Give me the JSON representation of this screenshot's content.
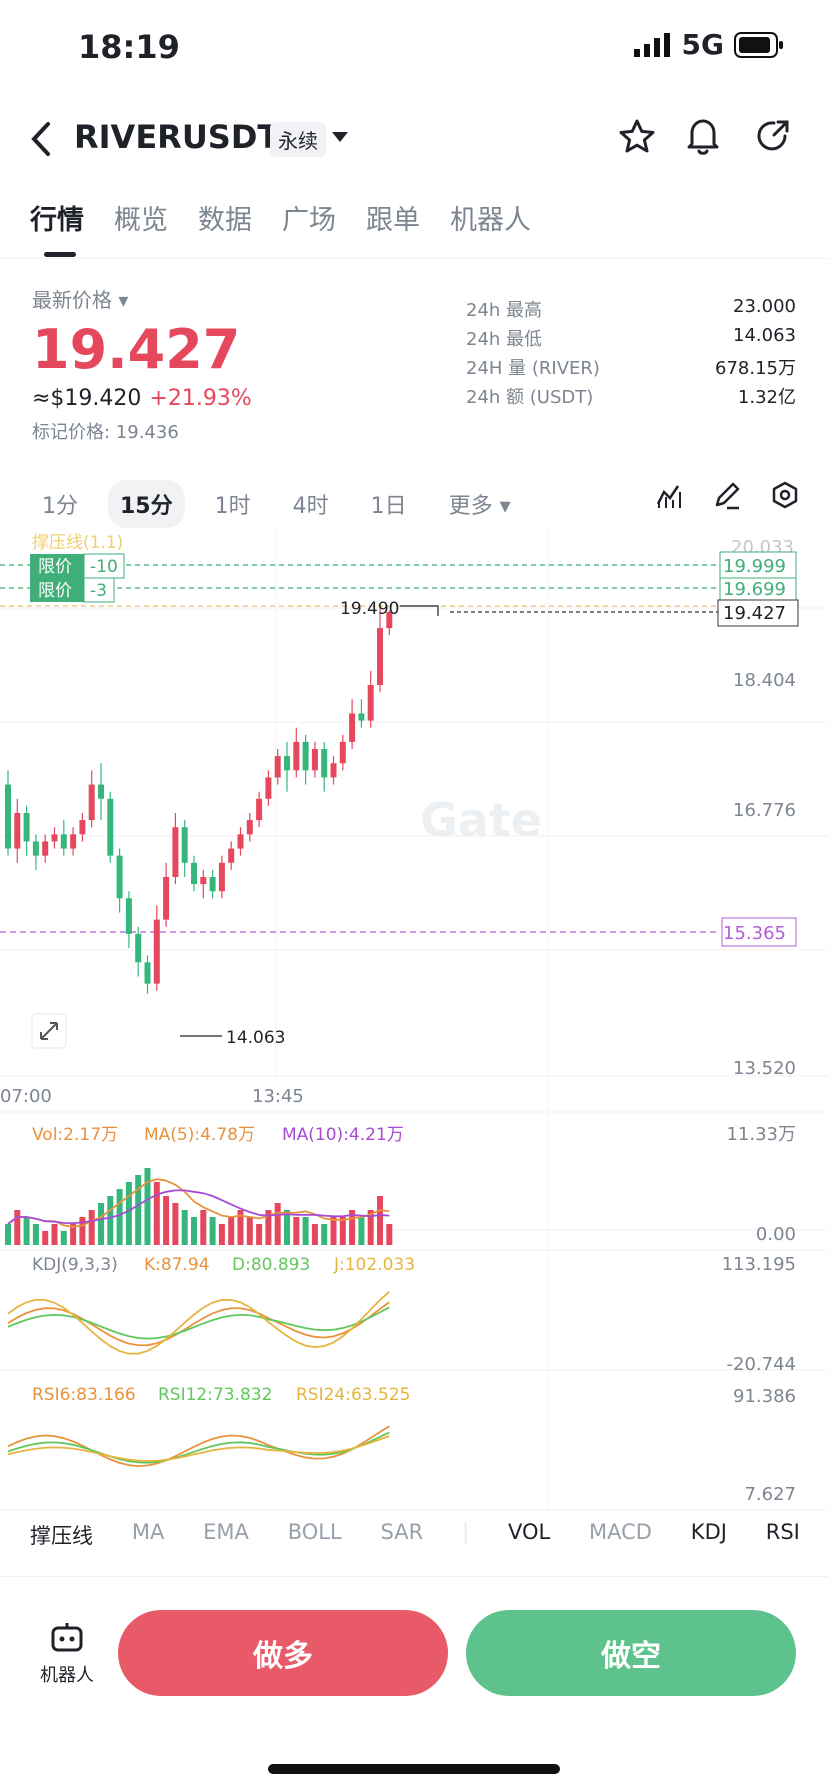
{
  "status": {
    "time": "18:19",
    "network": "5G"
  },
  "header": {
    "pair": "RIVERUSDT",
    "contract": "永续"
  },
  "tabs": [
    "行情",
    "概览",
    "数据",
    "广场",
    "跟单",
    "机器人"
  ],
  "ticker": {
    "latest_label": "最新价格",
    "price": "19.427",
    "usd": "≈$19.420",
    "change": "+21.93%",
    "mark_price": "标记价格: 19.436",
    "stats": [
      {
        "label": "24h  最高",
        "value": "23.000"
      },
      {
        "label": "24h  最低",
        "value": "14.063"
      },
      {
        "label": "24H  量 (RIVER)",
        "value": "678.15万"
      },
      {
        "label": "24h  额 (USDT)",
        "value": "1.32亿"
      }
    ]
  },
  "intervals": [
    "1分",
    "15分",
    "1时",
    "4时",
    "1日",
    "更多"
  ],
  "chart": {
    "ghost_label": "撑压线(1.1)",
    "order_badges": [
      {
        "type": "限价",
        "qty": "-10"
      },
      {
        "type": "限价",
        "qty": "-3"
      }
    ],
    "price_labels": [
      "20.033",
      "19.999",
      "19.699",
      "19.427",
      "18.404",
      "16.776",
      "15.365",
      "13.520"
    ],
    "high_marker": "19.490",
    "low_marker": "14.063",
    "time_labels": [
      "07:00",
      "13:45"
    ],
    "watermark": "Gate"
  },
  "volume": {
    "vol": "Vol:2.17万",
    "ma5": "MA(5):4.78万",
    "ma10": "MA(10):4.21万",
    "max": "11.33万",
    "min": "0.00"
  },
  "kdj": {
    "name": "KDJ(9,3,3)",
    "k": "K:87.94",
    "d": "D:80.893",
    "j": "J:102.033",
    "max": "113.195",
    "min": "-20.744"
  },
  "rsi": {
    "r6": "RSI6:83.166",
    "r12": "RSI12:73.832",
    "r24": "RSI24:63.525",
    "max": "91.386",
    "min": "7.627"
  },
  "indicator_tabs": [
    "撑压线",
    "MA",
    "EMA",
    "BOLL",
    "SAR",
    "VOL",
    "MACD",
    "KDJ",
    "RSI"
  ],
  "actions": {
    "robot": "机器人",
    "long": "做多",
    "short": "做空"
  },
  "colors": {
    "up": "#e5475c",
    "down": "#35b77b",
    "purple": "#a64bd6",
    "orange": "#e8923c",
    "green_line": "#60c85b",
    "yellow_line": "#e6b43f"
  }
}
